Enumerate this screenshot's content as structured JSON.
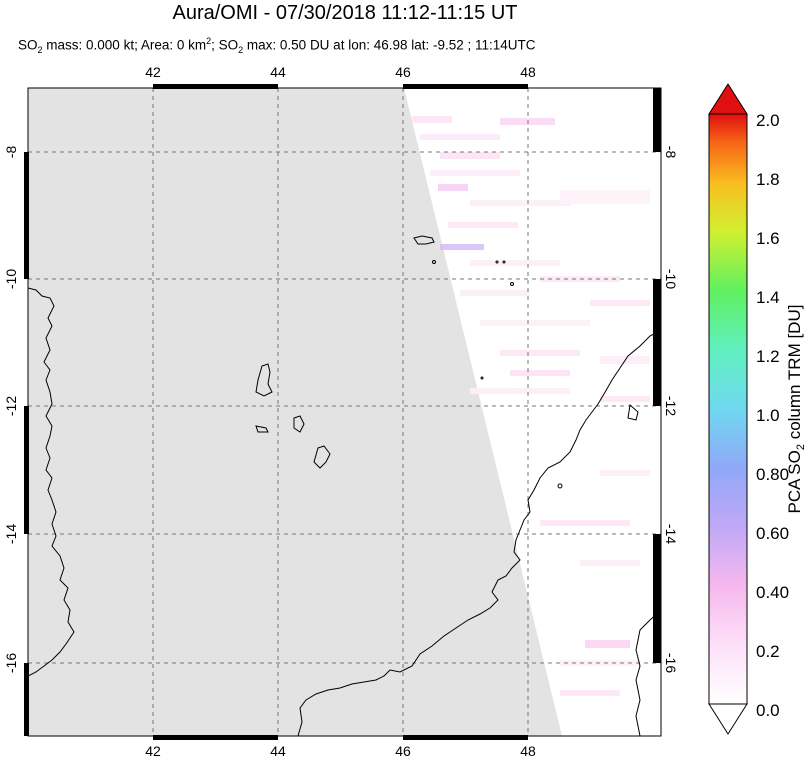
{
  "title": "Aura/OMI - 07/30/2018 11:12-11:15 UT",
  "subtitle": {
    "t1": "SO",
    "t1_sub": "2",
    "t2": " mass: 0.000 kt; Area: 0 km",
    "t2_sup": "2",
    "t3": "; SO",
    "t3_sub": "2",
    "t4": " max: 0.50 DU at lon: 46.98 lat: -9.52 ; 11:14UTC"
  },
  "map": {
    "lon_ticks": [
      "42",
      "44",
      "46",
      "48"
    ],
    "lat_ticks": [
      "-8",
      "-10",
      "-12",
      "-14",
      "-16"
    ],
    "no_data_color": "#e3e3e3",
    "coast_color": "#000000"
  },
  "colorbar": {
    "label_prefix": "PCA SO",
    "label_sub": "2",
    "label_suffix": " column TRM [DU]",
    "ticks": [
      "2.0",
      "1.8",
      "1.6",
      "1.4",
      "1.2",
      "1.0",
      "0.80",
      "0.60",
      "0.40",
      "0.2",
      "0.0"
    ],
    "min": 0.0,
    "max": 2.0,
    "colors": [
      "#ffffff",
      "#f9c4f0",
      "#b8a8f8",
      "#8ca8f8",
      "#6cd8f0",
      "#60f0c8",
      "#70f070",
      "#b8f040",
      "#f0f020",
      "#f8b020",
      "#f86020",
      "#e01010"
    ]
  }
}
